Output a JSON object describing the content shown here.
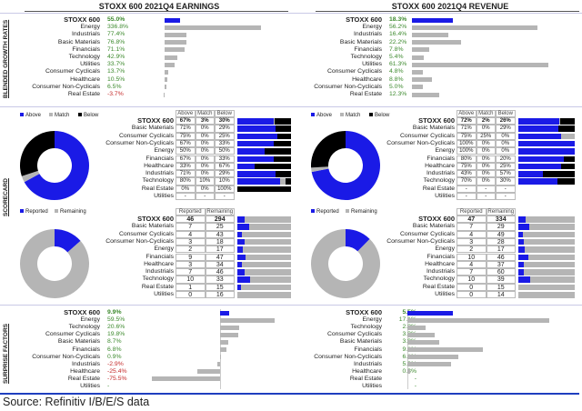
{
  "colors": {
    "blue": "#1a1ae6",
    "gray": "#b5b5b5",
    "black": "#000000",
    "green": "#3d8a2e",
    "red": "#c42a2a",
    "section_line": "#c9c9e6",
    "footer_line": "#1f3fbf"
  },
  "side_labels": {
    "growth": "BLENDED GROWTH RATES",
    "scorecard": "SCORECARD",
    "surprise": "SURPRISE FACTORS"
  },
  "panels": [
    {
      "title": "STOXX 600 2021Q4 EARNINGS",
      "growth": [
        [
          "STOXX 600",
          "55.0%",
          55.0
        ],
        [
          "Energy",
          "336.8%",
          336.8
        ],
        [
          "Industrials",
          "77.4%",
          77.4
        ],
        [
          "Basic Materials",
          "76.8%",
          76.8
        ],
        [
          "Financials",
          "71.1%",
          71.1
        ],
        [
          "Technology",
          "42.9%",
          42.9
        ],
        [
          "Utilities",
          "33.7%",
          33.7
        ],
        [
          "Consumer Cyclicals",
          "13.7%",
          13.7
        ],
        [
          "Healthcare",
          "10.5%",
          10.5
        ],
        [
          "Consumer Non-Cyclicals",
          "6.5%",
          6.5
        ],
        [
          "Real Estate",
          "-3.7%",
          -3.7
        ]
      ],
      "scorecard_legend": [
        "Above",
        "Match",
        "Below"
      ],
      "scorecard_headers": [
        "Above",
        "Match",
        "Below"
      ],
      "scorecard": [
        [
          "STOXX 600",
          "67%",
          "3%",
          "30%"
        ],
        [
          "Basic Materials",
          "71%",
          "0%",
          "29%"
        ],
        [
          "Consumer Cyclicals",
          "75%",
          "0%",
          "25%"
        ],
        [
          "Consumer Non-Cyclicals",
          "67%",
          "0%",
          "33%"
        ],
        [
          "Energy",
          "50%",
          "0%",
          "50%"
        ],
        [
          "Financials",
          "67%",
          "0%",
          "33%"
        ],
        [
          "Healthcare",
          "33%",
          "0%",
          "67%"
        ],
        [
          "Industrials",
          "71%",
          "0%",
          "29%"
        ],
        [
          "Technology",
          "80%",
          "10%",
          "10%"
        ],
        [
          "Real Estate",
          "0%",
          "0%",
          "100%"
        ],
        [
          "Utilities",
          "-",
          "-",
          "-"
        ]
      ],
      "reported_legend": [
        "Reported",
        "Remaining"
      ],
      "reported_headers": [
        "Reported",
        "Remaining"
      ],
      "reported": [
        [
          "STOXX 600",
          "46",
          "294"
        ],
        [
          "Basic Materials",
          "7",
          "25"
        ],
        [
          "Consumer Cyclicals",
          "4",
          "43"
        ],
        [
          "Consumer Non-Cyclicals",
          "3",
          "18"
        ],
        [
          "Energy",
          "2",
          "17"
        ],
        [
          "Financials",
          "9",
          "47"
        ],
        [
          "Healthcare",
          "3",
          "34"
        ],
        [
          "Industrials",
          "7",
          "46"
        ],
        [
          "Technology",
          "10",
          "33"
        ],
        [
          "Real Estate",
          "1",
          "15"
        ],
        [
          "Utilities",
          "0",
          "16"
        ]
      ],
      "surprise": [
        [
          "STOXX 600",
          "9.9%",
          9.9
        ],
        [
          "Energy",
          "59.5%",
          59.5
        ],
        [
          "Technology",
          "20.6%",
          20.6
        ],
        [
          "Consumer Cyclicals",
          "19.8%",
          19.8
        ],
        [
          "Basic Materials",
          "8.7%",
          8.7
        ],
        [
          "Financials",
          "6.8%",
          6.8
        ],
        [
          "Consumer Non-Cyclicals",
          "0.9%",
          0.9
        ],
        [
          "Industrials",
          "-2.9%",
          -2.9
        ],
        [
          "Healthcare",
          "-25.4%",
          -25.4
        ],
        [
          "Real Estate",
          "-75.5%",
          -75.5
        ],
        [
          "Utilities",
          "-",
          null
        ]
      ]
    },
    {
      "title": "STOXX 600 2021Q4 REVENUE",
      "growth": [
        [
          "STOXX 600",
          "18.3%",
          18.3
        ],
        [
          "Energy",
          "56.2%",
          56.2
        ],
        [
          "Industrials",
          "16.4%",
          16.4
        ],
        [
          "Basic Materials",
          "22.2%",
          22.2
        ],
        [
          "Financials",
          "7.8%",
          7.8
        ],
        [
          "Technology",
          "5.4%",
          5.4
        ],
        [
          "Utilities",
          "61.3%",
          61.3
        ],
        [
          "Consumer Cyclicals",
          "4.8%",
          4.8
        ],
        [
          "Healthcare",
          "8.8%",
          8.8
        ],
        [
          "Consumer Non-Cyclicals",
          "5.0%",
          5.0
        ],
        [
          "Real Estate",
          "12.3%",
          12.3
        ]
      ],
      "scorecard_legend": [
        "Above",
        "Match",
        "Below"
      ],
      "scorecard_headers": [
        "Above",
        "Match",
        "Below"
      ],
      "scorecard": [
        [
          "STOXX 600",
          "72%",
          "2%",
          "26%"
        ],
        [
          "Basic Materials",
          "71%",
          "0%",
          "29%"
        ],
        [
          "Consumer Cyclicals",
          "75%",
          "25%",
          "0%"
        ],
        [
          "Consumer Non-Cyclicals",
          "100%",
          "0%",
          "0%"
        ],
        [
          "Energy",
          "100%",
          "0%",
          "0%"
        ],
        [
          "Financials",
          "80%",
          "0%",
          "20%"
        ],
        [
          "Healthcare",
          "75%",
          "0%",
          "25%"
        ],
        [
          "Industrials",
          "43%",
          "0%",
          "57%"
        ],
        [
          "Technology",
          "70%",
          "0%",
          "30%"
        ],
        [
          "Real Estate",
          "-",
          "-",
          "-"
        ],
        [
          "Utilities",
          "-",
          "-",
          "-"
        ]
      ],
      "reported_legend": [
        "Reported",
        "Remaining"
      ],
      "reported_headers": [
        "Reported",
        "Remaining"
      ],
      "reported": [
        [
          "STOXX 600",
          "47",
          "334"
        ],
        [
          "Basic Materials",
          "7",
          "29"
        ],
        [
          "Consumer Cyclicals",
          "4",
          "49"
        ],
        [
          "Consumer Non-Cyclicals",
          "3",
          "28"
        ],
        [
          "Energy",
          "2",
          "17"
        ],
        [
          "Financials",
          "10",
          "46"
        ],
        [
          "Healthcare",
          "4",
          "37"
        ],
        [
          "Industrials",
          "7",
          "60"
        ],
        [
          "Technology",
          "10",
          "39"
        ],
        [
          "Real Estate",
          "0",
          "15"
        ],
        [
          "Utilities",
          "0",
          "14"
        ]
      ],
      "surprise": [
        [
          "STOXX 600",
          "5.5%",
          5.5
        ],
        [
          "Energy",
          "17.1%",
          17.1
        ],
        [
          "Technology",
          "2.2%",
          2.2
        ],
        [
          "Consumer Cyclicals",
          "3.3%",
          3.3
        ],
        [
          "Basic Materials",
          "3.9%",
          3.9
        ],
        [
          "Financials",
          "9.1%",
          9.1
        ],
        [
          "Consumer Non-Cyclicals",
          "6.1%",
          6.1
        ],
        [
          "Industrials",
          "5.3%",
          5.3
        ],
        [
          "Healthcare",
          "0.3%",
          0.3
        ],
        [
          "Real Estate",
          "-",
          null
        ],
        [
          "Utilities",
          "-",
          null
        ]
      ]
    }
  ],
  "footer": {
    "source": "Source: Refinitiv I/B/E/S data"
  }
}
